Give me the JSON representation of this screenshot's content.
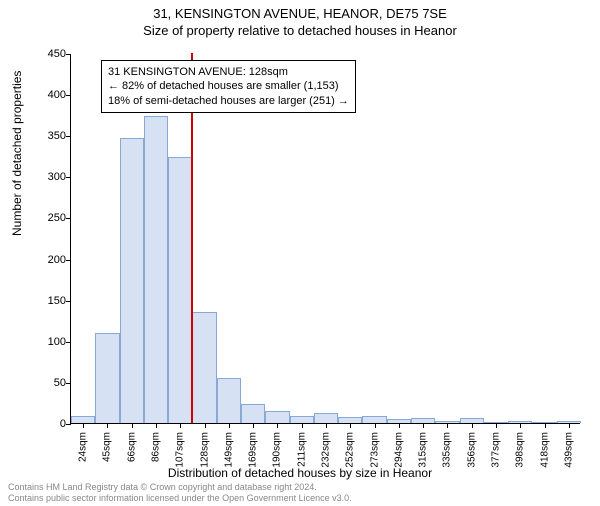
{
  "title_line1": "31, KENSINGTON AVENUE, HEANOR, DE75 7SE",
  "title_line2": "Size of property relative to detached houses in Heanor",
  "ylabel": "Number of detached properties",
  "xlabel": "Distribution of detached houses by size in Heanor",
  "chart": {
    "type": "histogram",
    "ylim": [
      0,
      450
    ],
    "ytick_step": 50,
    "yticks": [
      0,
      50,
      100,
      150,
      200,
      250,
      300,
      350,
      400,
      450
    ],
    "xtick_labels": [
      "24sqm",
      "45sqm",
      "66sqm",
      "86sqm",
      "107sqm",
      "128sqm",
      "149sqm",
      "169sqm",
      "190sqm",
      "211sqm",
      "232sqm",
      "252sqm",
      "273sqm",
      "294sqm",
      "315sqm",
      "335sqm",
      "356sqm",
      "377sqm",
      "398sqm",
      "418sqm",
      "439sqm"
    ],
    "values": [
      8,
      110,
      347,
      373,
      323,
      135,
      55,
      23,
      15,
      9,
      12,
      7,
      9,
      5,
      6,
      2,
      6,
      0,
      3,
      0,
      3
    ],
    "bar_color": "#d6e2f3",
    "bar_border": "#8aa8d4",
    "bar_width_ratio": 1.0,
    "background_color": "#ffffff",
    "axis_color": "#000000",
    "marker": {
      "position_index": 5,
      "color": "#cc0000"
    }
  },
  "info_box": {
    "line1": "31 KENSINGTON AVENUE: 128sqm",
    "line2": "← 82% of detached houses are smaller (1,153)",
    "line3": "18% of semi-detached houses are larger (251) →"
  },
  "footer": {
    "line1": "Contains HM Land Registry data © Crown copyright and database right 2024.",
    "line2": "Contains public sector information licensed under the Open Government Licence v3.0."
  },
  "style": {
    "title_fontsize": 13,
    "label_fontsize": 12,
    "tick_fontsize": 11,
    "xtick_fontsize": 10,
    "info_fontsize": 11,
    "footer_fontsize": 9,
    "footer_color": "#888888"
  }
}
